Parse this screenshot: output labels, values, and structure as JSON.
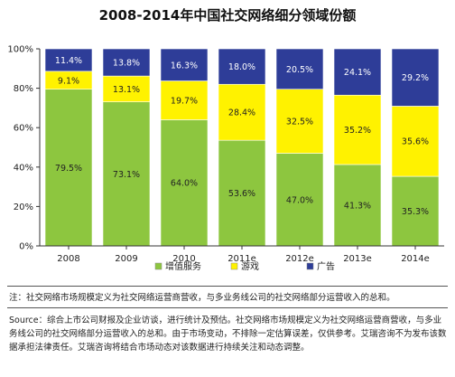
{
  "chart_data": {
    "type": "bar",
    "stacked": true,
    "title": "2008-2014年中国社交网络细分领域份额",
    "categories": [
      "2008",
      "2009",
      "2010",
      "2011e",
      "2012e",
      "2013e",
      "2014e"
    ],
    "yticks": [
      "0%",
      "20%",
      "40%",
      "60%",
      "80%",
      "100%"
    ],
    "ylim": [
      0,
      100
    ],
    "grid": false,
    "legend_position": "bottom",
    "series": [
      {
        "name": "增值服务",
        "color": "#8dc63f",
        "values": [
          79.5,
          73.1,
          64.0,
          53.6,
          47.0,
          41.3,
          35.3
        ],
        "labels": [
          "79.5%",
          "73.1%",
          "64.0%",
          "53.6%",
          "47.0%",
          "41.3%",
          "35.3%"
        ]
      },
      {
        "name": "游戏",
        "color": "#fff200",
        "values": [
          9.1,
          13.1,
          19.7,
          28.4,
          32.5,
          35.2,
          35.6
        ],
        "labels": [
          "9.1%",
          "13.1%",
          "19.7%",
          "28.4%",
          "32.5%",
          "35.2%",
          "35.6%"
        ]
      },
      {
        "name": "广告",
        "color": "#2e3d98",
        "values": [
          11.4,
          13.8,
          16.3,
          18.0,
          20.5,
          24.1,
          29.2
        ],
        "labels": [
          "11.4%",
          "13.8%",
          "16.3%",
          "18.0%",
          "20.5%",
          "24.1%",
          "29.2%"
        ]
      }
    ]
  },
  "notes": {
    "note": "注：社交网络市场规模定义为社交网络运营商营收，与多业务线公司的社交网络部分运营收入的总和。",
    "source": "Source：综合上市公司财报及企业访谈，进行统计及预估。社交网络市场规模定义为社交网络运营商营收，与多业务线公司的社交网络部分运营收入的总和。由于市场变动，不排除一定估算误差，仅供参考。艾瑞咨询不为发布该数据承担法律责任。艾瑞咨询将结合市场动态对该数据进行持续关注和动态调整。"
  }
}
